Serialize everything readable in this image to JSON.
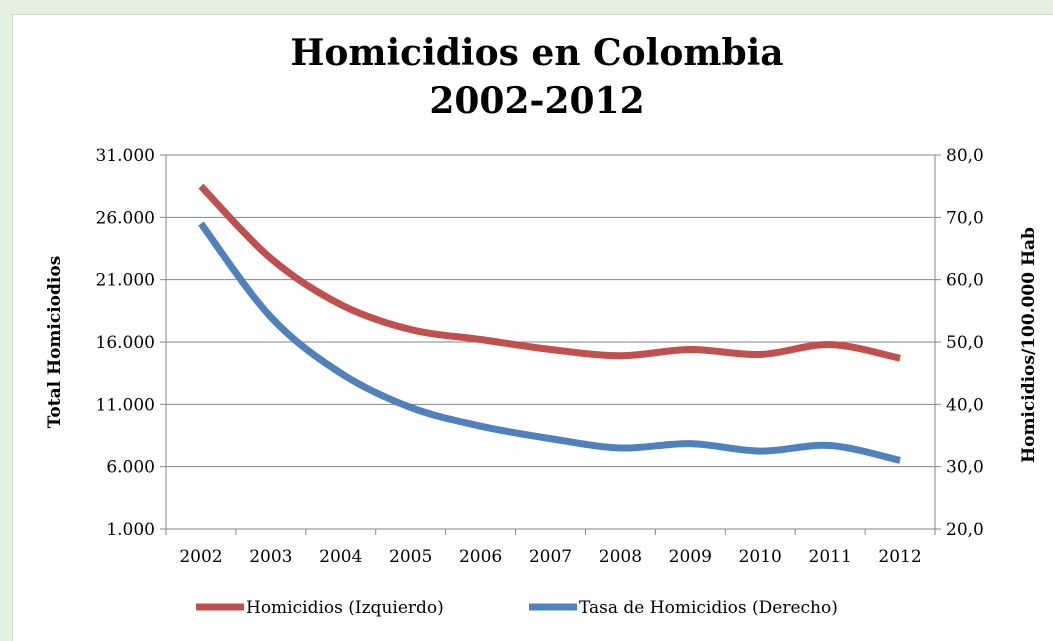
{
  "chart_data": {
    "type": "line",
    "title_lines": [
      "Homicidios en Colombia",
      "2002-2012"
    ],
    "categories": [
      "2002",
      "2003",
      "2004",
      "2005",
      "2006",
      "2007",
      "2008",
      "2009",
      "2010",
      "2011",
      "2012"
    ],
    "y_left": {
      "label": "Total Homiciodios",
      "ylim": [
        1000,
        31000
      ],
      "tick_labels": [
        "31.000",
        "26.000",
        "21.000",
        "16.000",
        "11.000",
        "6.000",
        "1.000"
      ],
      "tick_values": [
        31000,
        26000,
        21000,
        16000,
        11000,
        6000,
        1000
      ]
    },
    "y_right": {
      "label": "Homicidios/100.000 Hab",
      "ylim": [
        20,
        80
      ],
      "tick_labels": [
        "80,0",
        "70,0",
        "60,0",
        "50,0",
        "40,0",
        "30,0",
        "20,0"
      ],
      "tick_values": [
        80,
        70,
        60,
        50,
        40,
        30,
        20
      ]
    },
    "series": [
      {
        "name": "Homicidios (Izquierdo)",
        "axis": "left",
        "color": "#c0504d",
        "values": [
          28500,
          22700,
          19000,
          17000,
          16200,
          15400,
          14900,
          15400,
          15000,
          15800,
          14700
        ]
      },
      {
        "name": "Tasa de Homicidios (Derecho)",
        "axis": "right",
        "color": "#4f81bd",
        "values": [
          69,
          54,
          45,
          39.5,
          36.5,
          34.5,
          33,
          33.7,
          32.5,
          33.4,
          31
        ]
      }
    ],
    "grid": true,
    "legend_position": "bottom"
  }
}
